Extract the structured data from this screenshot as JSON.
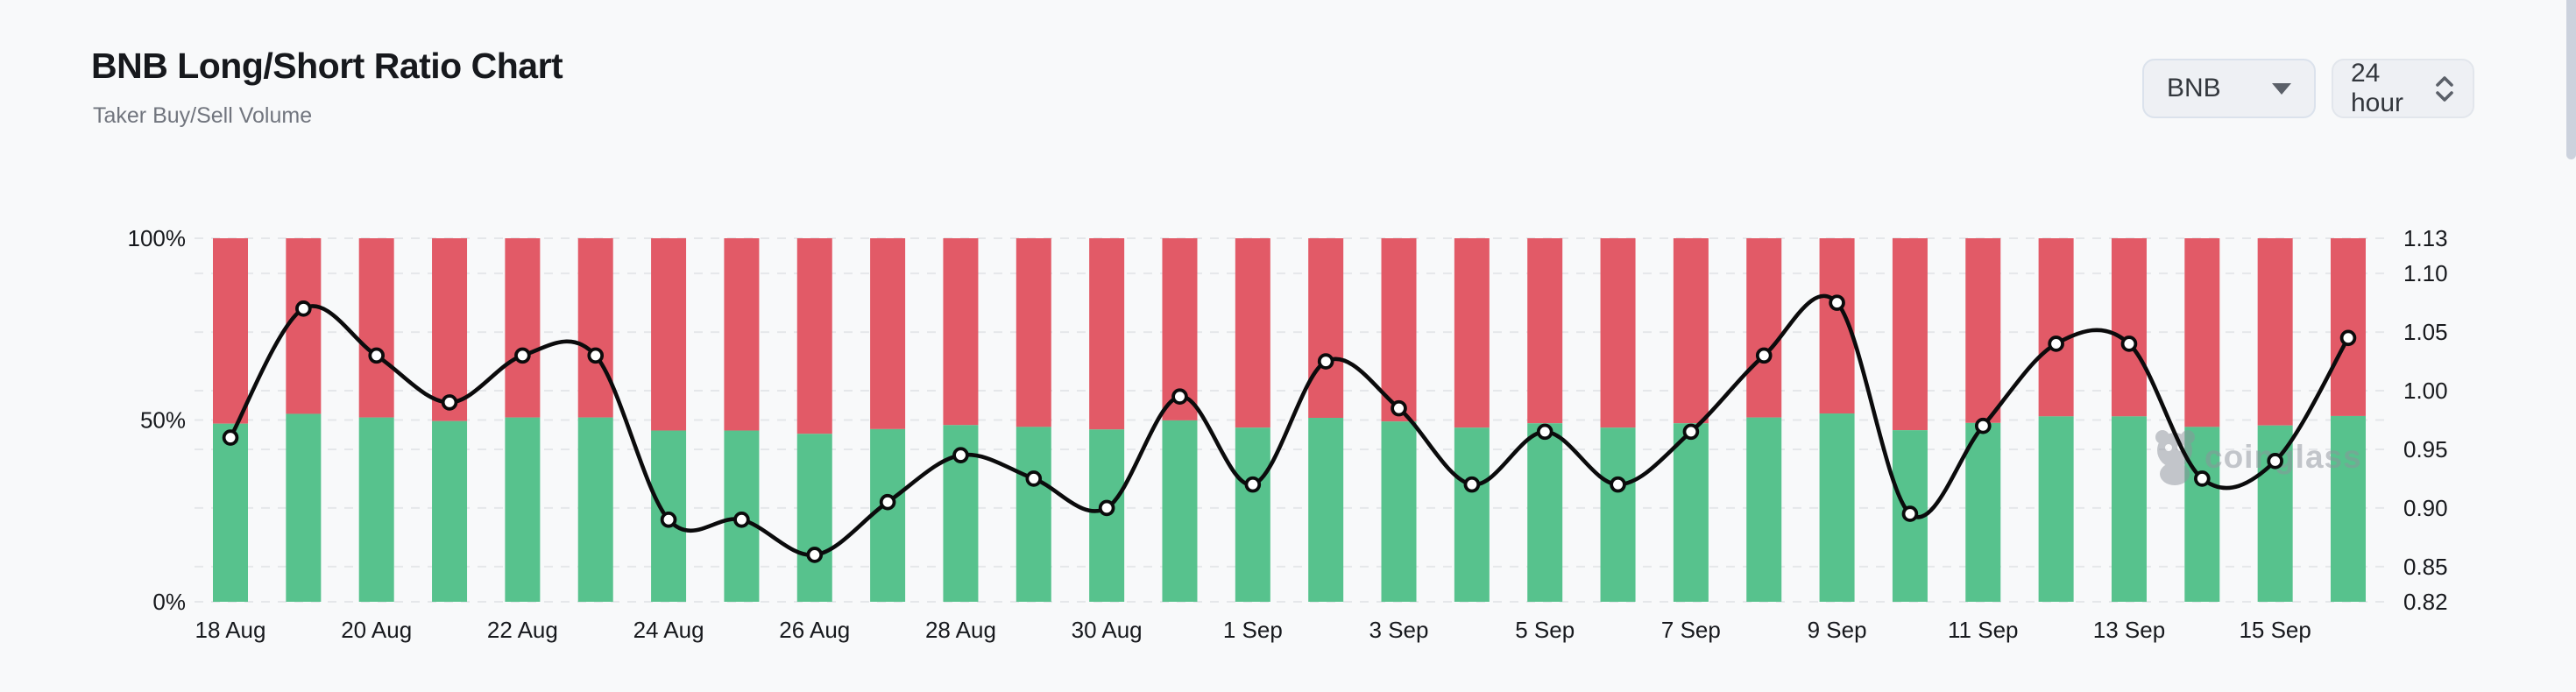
{
  "header": {
    "title": "BNB Long/Short Ratio Chart",
    "subtitle": "Taker Buy/Sell Volume"
  },
  "controls": {
    "symbol_select": {
      "value": "BNB"
    },
    "interval_select": {
      "value": "24 hour"
    }
  },
  "watermark": {
    "text": "coinglass"
  },
  "colors": {
    "buy_green": "#57c28d",
    "sell_red": "#e25a67",
    "line_black": "#0b0b0c",
    "grid": "#e5e7ea",
    "background": "#f8f9fa"
  },
  "chart_data": {
    "type": "bar",
    "subtype": "stacked-100pct-bars-with-ratio-line",
    "title": "BNB Long/Short Ratio Chart",
    "subtitle": "Taker Buy/Sell Volume",
    "categories": [
      "18 Aug",
      "19 Aug",
      "20 Aug",
      "21 Aug",
      "22 Aug",
      "23 Aug",
      "24 Aug",
      "25 Aug",
      "26 Aug",
      "27 Aug",
      "28 Aug",
      "29 Aug",
      "30 Aug",
      "31 Aug",
      "1 Sep",
      "2 Sep",
      "3 Sep",
      "4 Sep",
      "5 Sep",
      "6 Sep",
      "7 Sep",
      "8 Sep",
      "9 Sep",
      "10 Sep",
      "11 Sep",
      "12 Sep",
      "13 Sep",
      "14 Sep",
      "15 Sep",
      "16 Sep"
    ],
    "x_tick_labels": [
      "18 Aug",
      "20 Aug",
      "22 Aug",
      "24 Aug",
      "26 Aug",
      "28 Aug",
      "30 Aug",
      "1 Sep",
      "3 Sep",
      "5 Sep",
      "7 Sep",
      "9 Sep",
      "11 Sep",
      "13 Sep",
      "15 Sep"
    ],
    "series": [
      {
        "name": "Taker Buy %",
        "color": "#57c28d",
        "values": [
          49.0,
          51.7,
          50.7,
          49.7,
          50.7,
          50.7,
          47.1,
          47.1,
          46.2,
          47.5,
          48.6,
          48.1,
          47.4,
          49.9,
          47.9,
          50.6,
          49.6,
          47.9,
          49.1,
          47.9,
          49.1,
          50.7,
          51.8,
          47.2,
          49.2,
          51.0,
          51.0,
          48.1,
          48.5,
          51.1
        ]
      },
      {
        "name": "Taker Sell %",
        "color": "#e25a67",
        "values": [
          51.0,
          48.3,
          49.3,
          50.3,
          49.3,
          49.3,
          52.9,
          52.9,
          53.8,
          52.5,
          51.4,
          51.9,
          52.6,
          50.1,
          52.1,
          49.4,
          50.4,
          52.1,
          50.9,
          52.1,
          50.9,
          49.3,
          48.2,
          52.8,
          50.8,
          49.0,
          49.0,
          51.9,
          51.5,
          48.9
        ]
      }
    ],
    "line_series": {
      "name": "Long/Short Ratio",
      "color": "#0b0b0c",
      "values": [
        0.96,
        1.07,
        1.03,
        0.99,
        1.03,
        1.03,
        0.89,
        0.89,
        0.86,
        0.905,
        0.945,
        0.925,
        0.9,
        0.995,
        0.92,
        1.025,
        0.985,
        0.92,
        0.965,
        0.92,
        0.965,
        1.03,
        1.075,
        0.895,
        0.97,
        1.04,
        1.04,
        0.925,
        0.94,
        1.045
      ]
    },
    "left_axis": {
      "ticks": [
        "100%",
        "50%",
        "0%"
      ],
      "range": [
        0,
        100
      ]
    },
    "right_axis": {
      "ticks": [
        "1.13",
        "1.10",
        "1.05",
        "1.00",
        "0.95",
        "0.90",
        "0.85",
        "0.82"
      ],
      "range": [
        0.82,
        1.13
      ]
    },
    "grid": "dashed horizontal, bars drawn on top",
    "legend": "none"
  }
}
